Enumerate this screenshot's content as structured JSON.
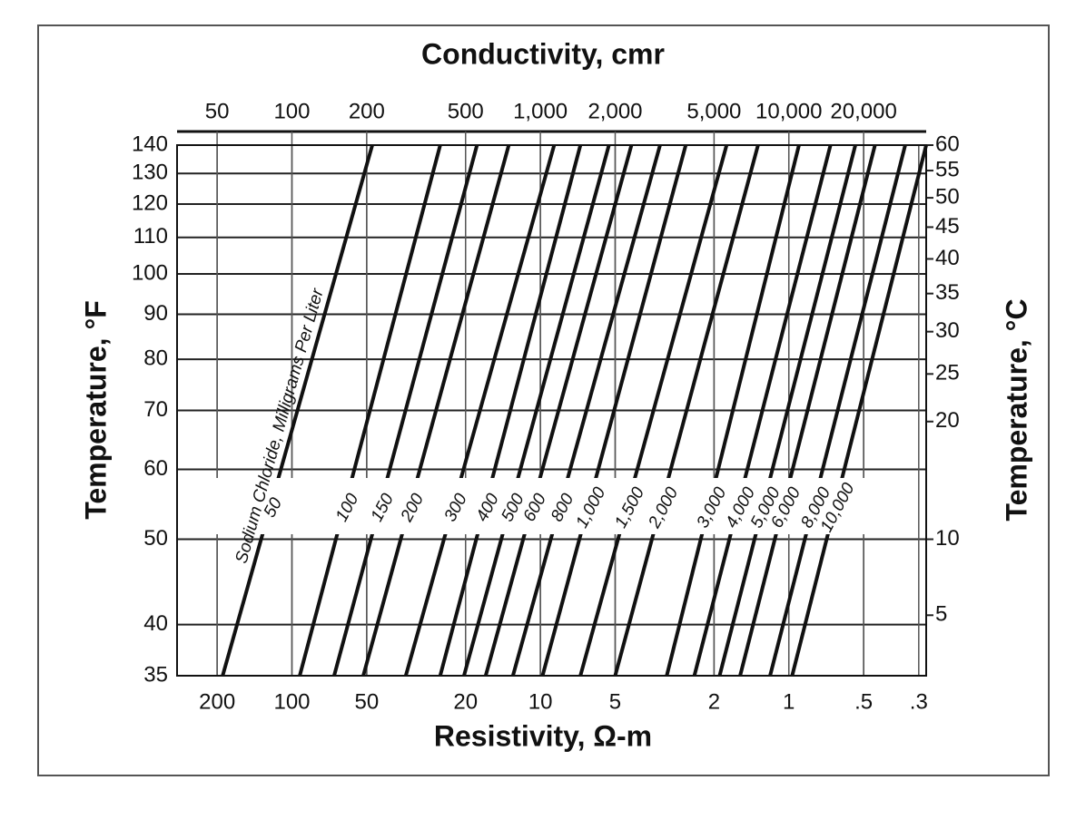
{
  "chart_data": {
    "type": "line",
    "x2label": "Conductivity, cmr",
    "xlabel": "Resistivity, Ω-m",
    "ylabel": "Temperature, °F",
    "y2label": "Temperature, °C",
    "series_title": "Sodium Chloride, Milligrams Per Liter",
    "color": "#111111",
    "grid": true,
    "xlog": true,
    "x2log": true,
    "ylog": true,
    "xlim": [
      290,
      0.28
    ],
    "xticks": [
      200,
      100,
      50,
      20,
      10,
      5,
      2,
      1,
      {
        "value": 0.5,
        "label": ".5"
      },
      {
        "value": 0.3,
        "label": ".3"
      }
    ],
    "x2lim": [
      34.5,
      35700
    ],
    "x2ticks": [
      50,
      100,
      200,
      500,
      {
        "value": 1000,
        "label": "1,000"
      },
      {
        "value": 2000,
        "label": "2,000"
      },
      {
        "value": 5000,
        "label": "5,000"
      },
      {
        "value": 10000,
        "label": "10,000"
      },
      {
        "value": 20000,
        "label": "20,000"
      }
    ],
    "ylim": [
      35,
      140
    ],
    "yticks": [
      35,
      40,
      50,
      60,
      70,
      80,
      90,
      100,
      110,
      120,
      130,
      140
    ],
    "y2lim": [
      1.67,
      60
    ],
    "y2ticks": [
      5,
      10,
      20,
      25,
      30,
      35,
      40,
      45,
      50,
      55,
      60
    ],
    "y": [
      35,
      140
    ],
    "series": [
      {
        "name": "50",
        "x": [
          190,
          47.5
        ]
      },
      {
        "name": "100",
        "x": [
          93,
          25.3
        ]
      },
      {
        "name": "150",
        "x": [
          67.6,
          18
        ]
      },
      {
        "name": "200",
        "x": [
          51.6,
          13.4
        ]
      },
      {
        "name": "300",
        "x": [
          34.8,
          8.8
        ]
      },
      {
        "name": "400",
        "x": [
          25.3,
          6.9
        ]
      },
      {
        "name": "500",
        "x": [
          20.3,
          5.3
        ]
      },
      {
        "name": "600",
        "x": [
          16.6,
          4.3
        ]
      },
      {
        "name": "800",
        "x": [
          12.9,
          3.3
        ]
      },
      {
        "name": "1,000",
        "x": [
          9.8,
          2.6
        ]
      },
      {
        "name": "1,500",
        "x": [
          6.9,
          1.78
        ]
      },
      {
        "name": "2,000",
        "x": [
          5,
          1.33
        ]
      },
      {
        "name": "3,000",
        "x": [
          3.1,
          0.91
        ]
      },
      {
        "name": "4,000",
        "x": [
          2.4,
          0.68
        ]
      },
      {
        "name": "5,000",
        "x": [
          1.9,
          0.54
        ]
      },
      {
        "name": "6,000",
        "x": [
          1.57,
          0.45
        ]
      },
      {
        "name": "8,000",
        "x": [
          1.19,
          0.34
        ]
      },
      {
        "name": "10,000",
        "x": [
          0.97,
          0.28
        ]
      }
    ]
  }
}
